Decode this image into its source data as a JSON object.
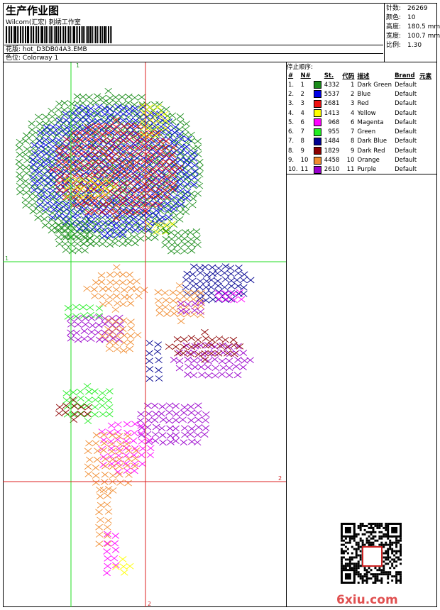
{
  "header": {
    "title": "生产作业图",
    "subtitle": "Wilcom(汇宏) 刺绣工作室",
    "design_label": "花版: hot_D3DB04A3.EMB",
    "colorway_label": "色位: Colorway 1"
  },
  "stats": [
    {
      "key": "针数:",
      "value": "26269"
    },
    {
      "key": "颜色:",
      "value": "10"
    },
    {
      "key": "高度:",
      "value": "180.5 mm"
    },
    {
      "key": "宽度:",
      "value": "100.7 mm"
    },
    {
      "key": "比例:",
      "value": "1.30"
    }
  ],
  "legend": {
    "caption": "停止顺序:",
    "headers": [
      "#",
      "N#",
      "St.",
      "代码",
      "描述",
      "Brand",
      "元素"
    ],
    "rows": [
      {
        "idx": "1.",
        "n": "1",
        "color": "#1a8c1a",
        "st": "4332",
        "code": "1",
        "desc": "Dark Green",
        "brand": "Default"
      },
      {
        "idx": "2.",
        "n": "2",
        "color": "#0000e6",
        "st": "5537",
        "code": "2",
        "desc": "Blue",
        "brand": "Default"
      },
      {
        "idx": "3.",
        "n": "3",
        "color": "#ee1111",
        "st": "2681",
        "code": "3",
        "desc": "Red",
        "brand": "Default"
      },
      {
        "idx": "4.",
        "n": "4",
        "color": "#ffff00",
        "st": "1413",
        "code": "4",
        "desc": "Yellow",
        "brand": "Default"
      },
      {
        "idx": "5.",
        "n": "6",
        "color": "#ff00ff",
        "st": "968",
        "code": "6",
        "desc": "Magenta",
        "brand": "Default"
      },
      {
        "idx": "6.",
        "n": "7",
        "color": "#22ee22",
        "st": "955",
        "code": "7",
        "desc": "Green",
        "brand": "Default"
      },
      {
        "idx": "7.",
        "n": "8",
        "color": "#000090",
        "st": "1484",
        "code": "8",
        "desc": "Dark Blue",
        "brand": "Default"
      },
      {
        "idx": "8.",
        "n": "9",
        "color": "#8c0000",
        "st": "1829",
        "code": "9",
        "desc": "Dark Red",
        "brand": "Default"
      },
      {
        "idx": "9.",
        "n": "10",
        "color": "#f08c30",
        "st": "4458",
        "code": "10",
        "desc": "Orange",
        "brand": "Default"
      },
      {
        "idx": "10.",
        "n": "11",
        "color": "#9900cc",
        "st": "2610",
        "code": "11",
        "desc": "Purple",
        "brand": "Default"
      }
    ]
  },
  "guides": {
    "label_1": "1",
    "label_2": "2"
  },
  "watermark": "6xiu.com"
}
